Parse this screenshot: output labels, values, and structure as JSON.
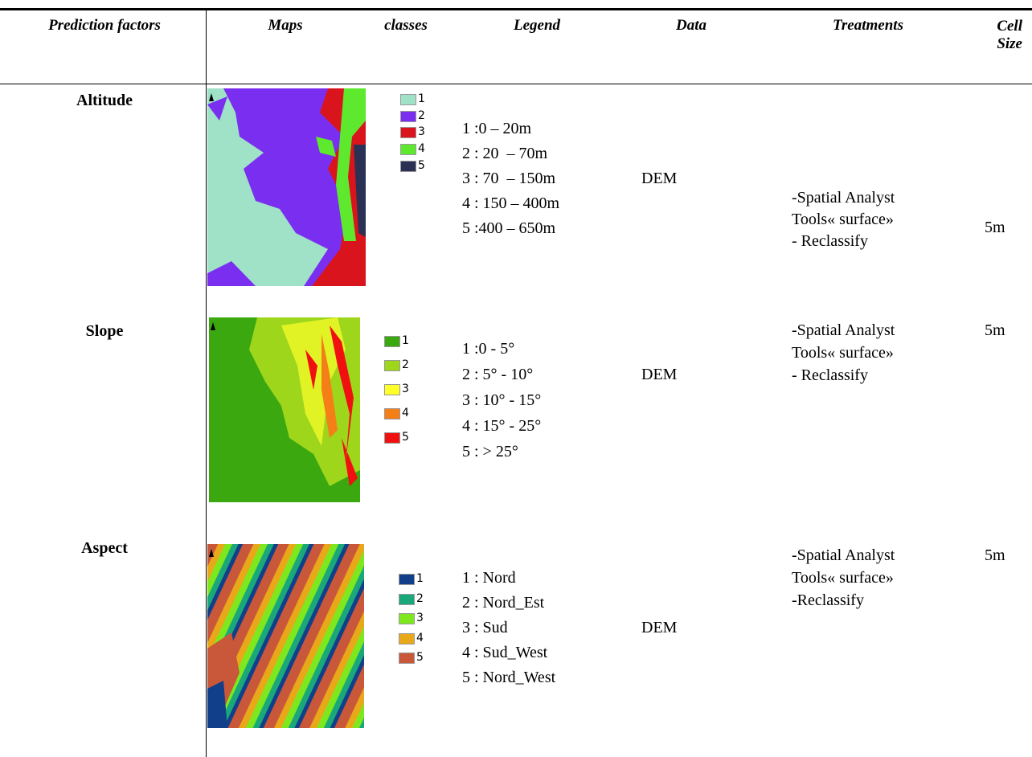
{
  "table": {
    "headers": [
      "Prediction factors",
      "Maps",
      "classes",
      "Legend",
      "Data",
      "Treatments",
      "Cell Size"
    ],
    "rows": [
      {
        "factor": "Altitude",
        "classes": [
          {
            "label": "1",
            "color": "#9fe2c8"
          },
          {
            "label": "2",
            "color": "#7a2ff0"
          },
          {
            "label": "3",
            "color": "#d9141c"
          },
          {
            "label": "4",
            "color": "#5ee82e"
          },
          {
            "label": "5",
            "color": "#2b3154"
          }
        ],
        "legend": [
          "1 :0 – 20m",
          "2 : 20  – 70m",
          "3 : 70  – 150m",
          "4 : 150 – 400m",
          "5 :400 – 650m"
        ],
        "data": "DEM",
        "treatments": [
          "-Spatial Analyst",
          "Tools« surface»",
          "- Reclassify"
        ],
        "cell_size": "5m"
      },
      {
        "factor": "Slope",
        "classes": [
          {
            "label": "1",
            "color": "#3aa80e"
          },
          {
            "label": "2",
            "color": "#9ed61c"
          },
          {
            "label": "3",
            "color": "#ffff2a"
          },
          {
            "label": "4",
            "color": "#f47f16"
          },
          {
            "label": "5",
            "color": "#f01010"
          }
        ],
        "legend": [
          "1 :0 - 5°",
          "2 : 5° - 10°",
          "3 : 10° - 15°",
          "4 : 15° - 25°",
          "5 : > 25°"
        ],
        "data": "DEM",
        "treatments": [
          "-Spatial Analyst",
          "Tools« surface»",
          "- Reclassify"
        ],
        "cell_size": "5m"
      },
      {
        "factor": "Aspect",
        "classes": [
          {
            "label": "1",
            "color": "#123f8a"
          },
          {
            "label": "2",
            "color": "#1aa87a"
          },
          {
            "label": "3",
            "color": "#7ee81e"
          },
          {
            "label": "4",
            "color": "#e8a81a"
          },
          {
            "label": "5",
            "color": "#c9573a"
          }
        ],
        "legend": [
          "1 : Nord",
          "2 : Nord_Est",
          "3 : Sud",
          "4 : Sud_West",
          "5 : Nord_West"
        ],
        "data": "DEM",
        "treatments": [
          "-Spatial Analyst",
          "Tools« surface»",
          "-Reclassify"
        ],
        "cell_size": "5m"
      }
    ]
  }
}
